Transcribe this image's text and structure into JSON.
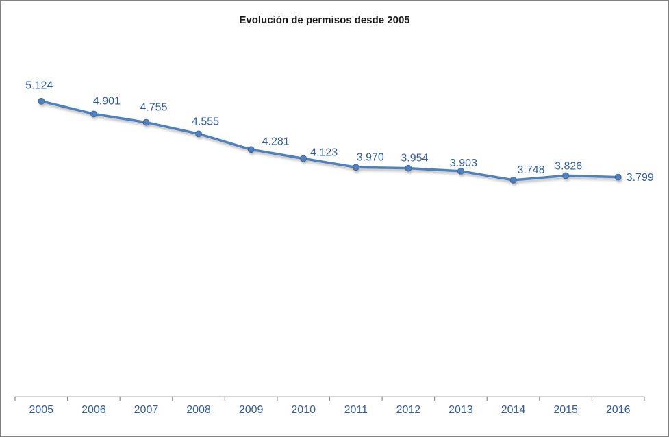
{
  "window": {
    "background": "#FFFFFF",
    "border_color": "#808080"
  },
  "chart_data": {
    "type": "line",
    "title": "Evolución de permisos desde 2005",
    "categories": [
      "2005",
      "2006",
      "2007",
      "2008",
      "2009",
      "2010",
      "2011",
      "2012",
      "2013",
      "2014",
      "2015",
      "2016"
    ],
    "values": [
      5124,
      4901,
      4755,
      4555,
      4281,
      4123,
      3970,
      3954,
      3903,
      3748,
      3826,
      3799
    ],
    "point_labels": [
      "5.124",
      "4.901",
      "4.755",
      "4.555",
      "4.281",
      "4.123",
      "3.970",
      "3.954",
      "3.903",
      "3.748",
      "3.826",
      "3.799"
    ],
    "xlabel": "",
    "ylabel": "",
    "ylim": [
      0,
      6150
    ],
    "y_axis_visible": false,
    "gridlines": false,
    "legend": "none",
    "marker": "circle",
    "line_color": "#4F81BD",
    "marker_color": "#4F81BD",
    "marker_edge_color": "#3A6293",
    "line_shadow": true,
    "data_label_color": "#2E5DA6",
    "axis_label_color": "#2E5DA6",
    "axis_line_color": "#BFBFBF",
    "tick_color": "#8C8C8C",
    "title_color": "#1A1A1A"
  }
}
